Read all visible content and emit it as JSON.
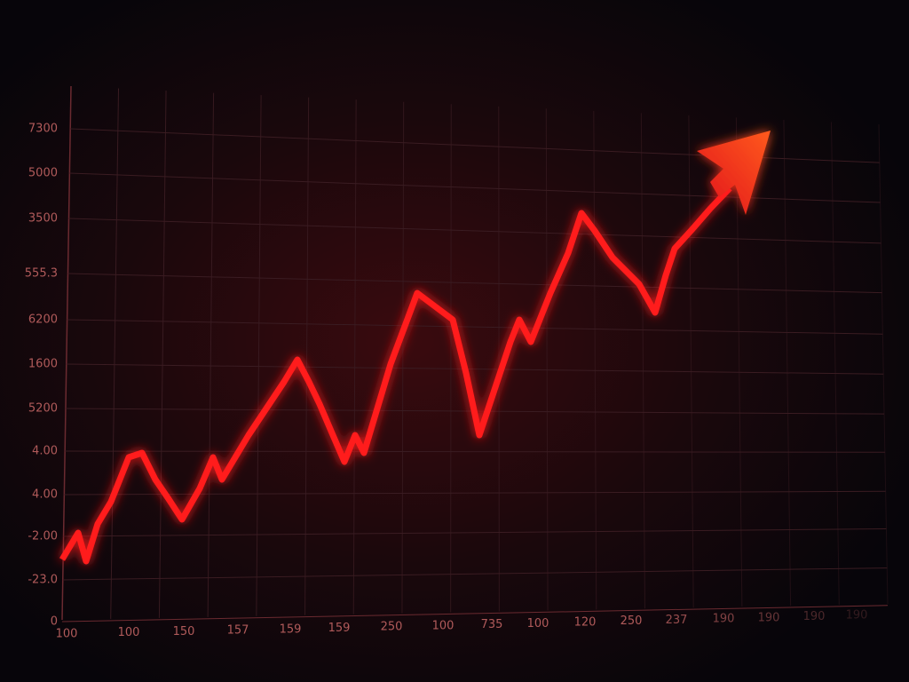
{
  "y_labels": [
    "7300",
    "5000",
    "3500",
    "555.3",
    "6200",
    "1600",
    "5200",
    "4.00",
    "4.00",
    "-2.00",
    "-23.0",
    "0"
  ],
  "x_labels": [
    "100",
    "100",
    "150",
    "157",
    "159",
    "159",
    "250",
    "100",
    "735",
    "100",
    "120",
    "250",
    "237",
    "190",
    "190",
    "190",
    "190"
  ]
}
